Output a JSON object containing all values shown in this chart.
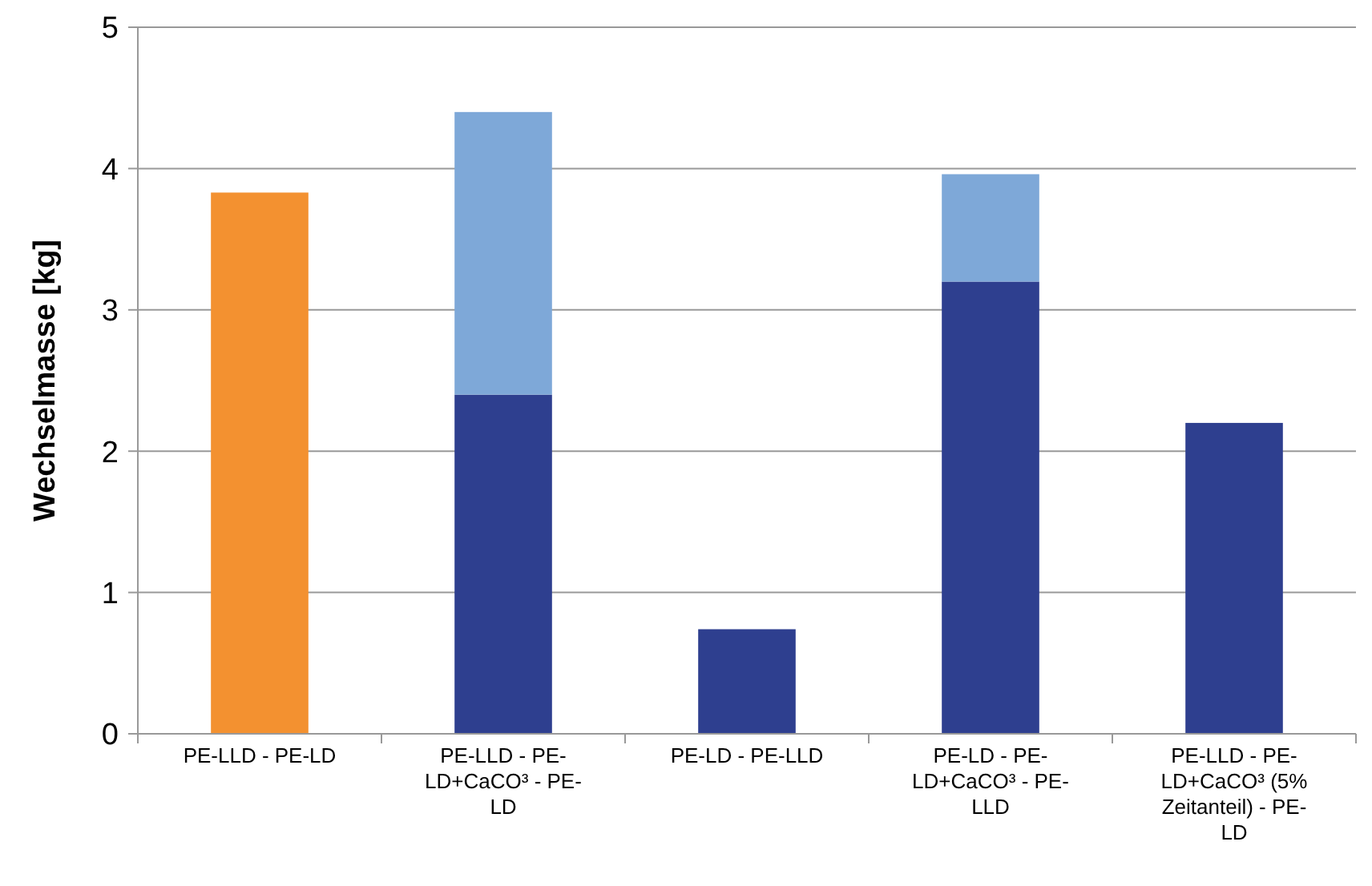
{
  "chart_data": {
    "type": "bar",
    "ylabel": "Wechselmasse [kg]",
    "categories": [
      "PE-LLD - PE-LD",
      "PE-LLD - PE-LD+CaCO³ - PE-LD",
      "PE-LD - PE-LLD",
      "PE-LD - PE-LD+CaCO³ - PE-LLD",
      "PE-LLD - PE-LD+CaCO³ (5% Zeitanteil) - PE-LD"
    ],
    "stacked": true,
    "series": [
      {
        "color": "#f39130",
        "values": [
          3.83,
          null,
          null,
          null,
          null
        ]
      },
      {
        "color": "#2e3f8f",
        "values": [
          null,
          2.4,
          0.74,
          3.2,
          2.2
        ]
      },
      {
        "color": "#7ea8d8",
        "values": [
          null,
          2.0,
          null,
          0.76,
          null
        ]
      }
    ],
    "ylim": [
      0,
      5
    ],
    "yticks": [
      0,
      1,
      2,
      3,
      4,
      5
    ],
    "grid": "y"
  }
}
